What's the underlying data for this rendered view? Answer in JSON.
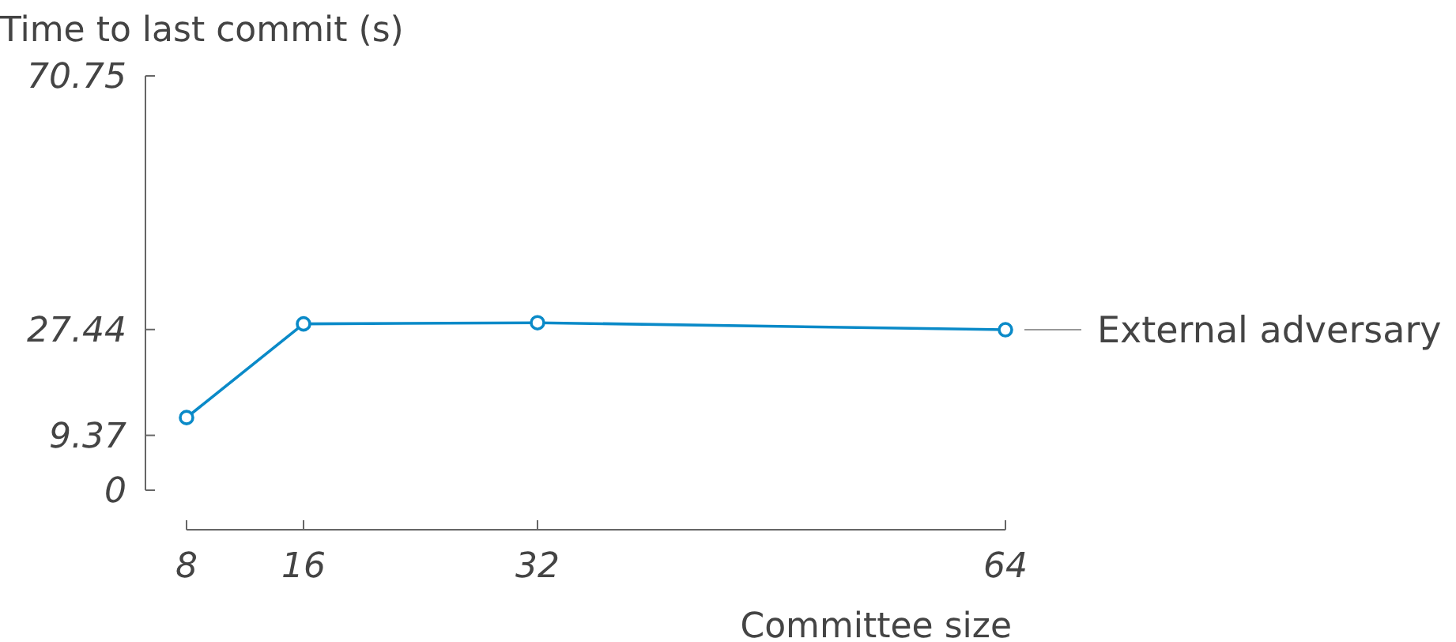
{
  "chart_data": {
    "type": "line",
    "xlabel": "Committee size",
    "ylabel": "Time to last commit (s)",
    "x": [
      8,
      16,
      32,
      64
    ],
    "series": [
      {
        "name": "External adversary",
        "color": "#0a8ac8",
        "values": [
          12.4,
          28.4,
          28.6,
          27.4
        ]
      }
    ],
    "xlim": [
      8,
      64
    ],
    "xticks": [
      8,
      16,
      32,
      64
    ],
    "ylim": [
      0,
      70.75
    ],
    "yticks": [
      0,
      9.37,
      27.44,
      70.75
    ],
    "marker": "circle",
    "line_style": "solid",
    "grid": false
  }
}
